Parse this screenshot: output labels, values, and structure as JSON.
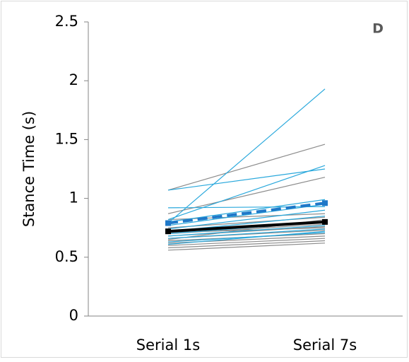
{
  "chart_data": {
    "type": "line",
    "panel_label": "D",
    "y_label": "Stance Time (s)",
    "categories": [
      "Serial 1s",
      "Serial 7s"
    ],
    "ylim": [
      0,
      2.5
    ],
    "yticks": [
      0,
      0.5,
      1,
      1.5,
      2,
      2.5
    ],
    "grid": false,
    "series": [
      {
        "color": "#8c8c8c",
        "values": [
          1.07,
          1.46
        ]
      },
      {
        "color": "#8c8c8c",
        "values": [
          0.87,
          1.18
        ]
      },
      {
        "color": "#8c8c8c",
        "values": [
          0.82,
          0.87
        ]
      },
      {
        "color": "#8c8c8c",
        "values": [
          0.75,
          0.84
        ]
      },
      {
        "color": "#8c8c8c",
        "values": [
          0.72,
          0.8
        ]
      },
      {
        "color": "#8c8c8c",
        "values": [
          0.7,
          0.78
        ]
      },
      {
        "color": "#8c8c8c",
        "values": [
          0.68,
          0.76
        ]
      },
      {
        "color": "#8c8c8c",
        "values": [
          0.66,
          0.73
        ]
      },
      {
        "color": "#8c8c8c",
        "values": [
          0.64,
          0.7
        ]
      },
      {
        "color": "#8c8c8c",
        "values": [
          0.62,
          0.68
        ]
      },
      {
        "color": "#8c8c8c",
        "values": [
          0.6,
          0.66
        ]
      },
      {
        "color": "#8c8c8c",
        "values": [
          0.58,
          0.64
        ]
      },
      {
        "color": "#8c8c8c",
        "values": [
          0.56,
          0.62
        ]
      },
      {
        "color": "#8c8c8c",
        "values": [
          0.65,
          0.82
        ]
      },
      {
        "color": "#8c8c8c",
        "values": [
          0.71,
          0.75
        ]
      },
      {
        "color": "#29a8dc",
        "values": [
          0.79,
          1.93
        ]
      },
      {
        "color": "#29a8dc",
        "values": [
          1.07,
          1.25
        ]
      },
      {
        "color": "#29a8dc",
        "values": [
          0.82,
          1.28
        ]
      },
      {
        "color": "#29a8dc",
        "values": [
          0.92,
          0.93
        ]
      },
      {
        "color": "#29a8dc",
        "values": [
          0.8,
          0.99
        ]
      },
      {
        "color": "#29a8dc",
        "values": [
          0.77,
          0.95
        ]
      },
      {
        "color": "#29a8dc",
        "values": [
          0.74,
          0.9
        ]
      },
      {
        "color": "#29a8dc",
        "values": [
          0.72,
          0.85
        ]
      },
      {
        "color": "#29a8dc",
        "values": [
          0.7,
          0.8
        ]
      },
      {
        "color": "#29a8dc",
        "values": [
          0.68,
          0.77
        ]
      },
      {
        "color": "#29a8dc",
        "values": [
          0.66,
          0.74
        ]
      },
      {
        "color": "#29a8dc",
        "values": [
          0.63,
          0.71
        ]
      },
      {
        "color": "#29a8dc",
        "values": [
          0.61,
          0.72
        ]
      },
      {
        "color": "#000000",
        "values": [
          0.72,
          0.8
        ],
        "width": 4,
        "marker": true
      },
      {
        "color": "#1f78c8",
        "values": [
          0.79,
          0.96
        ],
        "width": 4,
        "dash": true,
        "marker": true
      }
    ]
  }
}
